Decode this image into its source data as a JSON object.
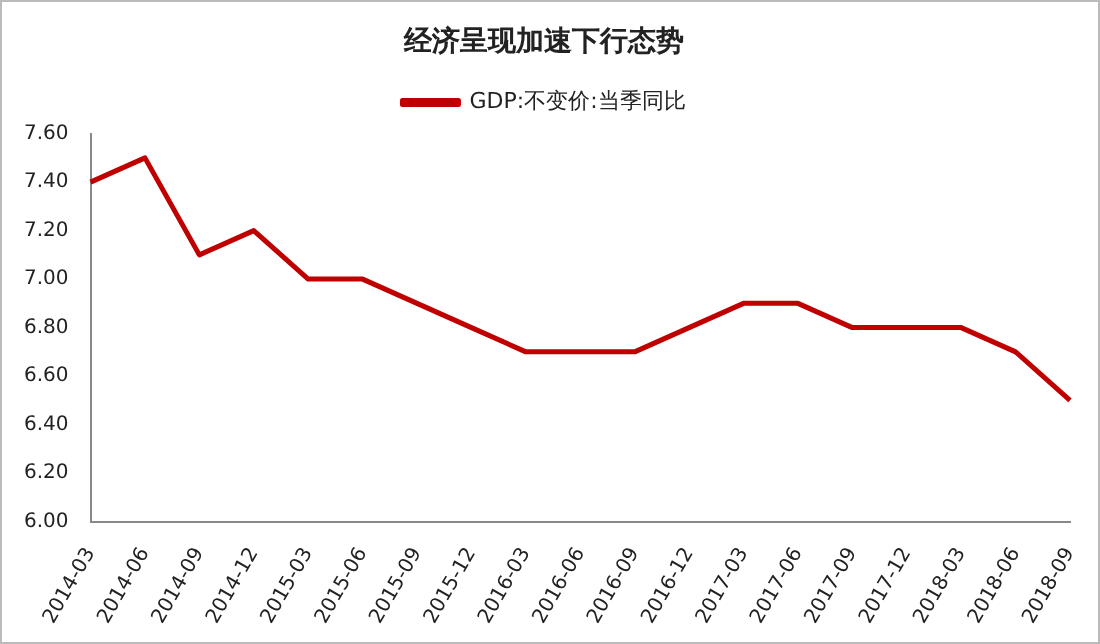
{
  "chart_data": {
    "type": "line",
    "title": "经济呈现加速下行态势",
    "categories": [
      "2014-03",
      "2014-06",
      "2014-09",
      "2014-12",
      "2015-03",
      "2015-06",
      "2015-09",
      "2015-12",
      "2016-03",
      "2016-06",
      "2016-09",
      "2016-12",
      "2017-03",
      "2017-06",
      "2017-09",
      "2017-12",
      "2018-03",
      "2018-06",
      "2018-09"
    ],
    "series": [
      {
        "name": "GDP:不变价:当季同比",
        "color": "#c00000",
        "values": [
          7.4,
          7.5,
          7.1,
          7.2,
          7.0,
          7.0,
          6.9,
          6.8,
          6.7,
          6.7,
          6.7,
          6.8,
          6.9,
          6.9,
          6.8,
          6.8,
          6.8,
          6.7,
          6.5
        ]
      }
    ],
    "ylim": [
      6.0,
      7.6
    ],
    "yticks": [
      {
        "value": 6.0,
        "label": "6.00"
      },
      {
        "value": 6.2,
        "label": "6.20"
      },
      {
        "value": 6.4,
        "label": "6.40"
      },
      {
        "value": 6.6,
        "label": "6.60"
      },
      {
        "value": 6.8,
        "label": "6.80"
      },
      {
        "value": 7.0,
        "label": "7.00"
      },
      {
        "value": 7.2,
        "label": "7.20"
      },
      {
        "value": 7.4,
        "label": "7.40"
      },
      {
        "value": 7.6,
        "label": "7.60"
      }
    ],
    "grid": false,
    "legend": "top",
    "marker": "none",
    "line_style": "solid"
  }
}
